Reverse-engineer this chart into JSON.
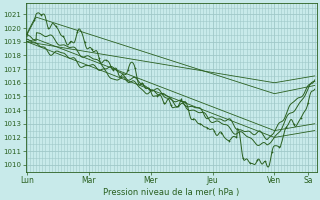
{
  "background_color": "#c8eaea",
  "grid_color": "#a0c8c8",
  "line_color": "#2a6020",
  "ylabel": "Pression niveau de la mer( hPa )",
  "yticks": [
    1010,
    1011,
    1012,
    1013,
    1014,
    1015,
    1016,
    1017,
    1018,
    1019,
    1020,
    1021
  ],
  "ylim": [
    1009.5,
    1021.8
  ],
  "day_labels": [
    "Lun",
    "Mar",
    "Mer",
    "Jeu",
    "Ven",
    "Sa"
  ],
  "day_positions": [
    0.0,
    1.0,
    2.0,
    3.0,
    4.0,
    4.55
  ],
  "xlim": [
    -0.02,
    4.68
  ],
  "npts": 600
}
